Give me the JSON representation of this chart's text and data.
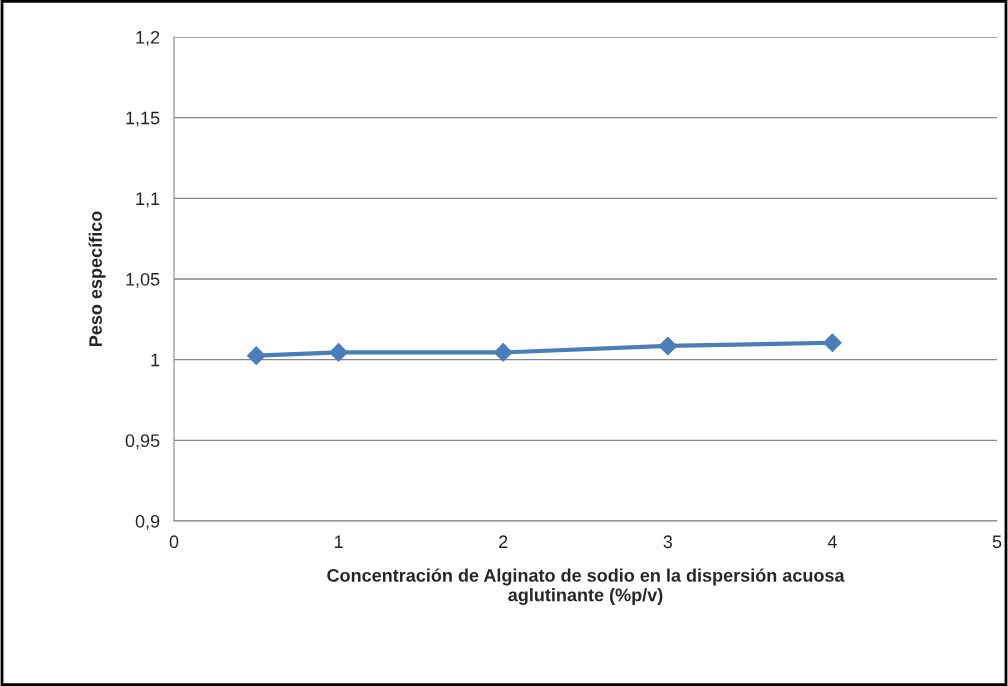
{
  "chart_data": {
    "type": "line",
    "xlabel": "Concentración de Alginato de sodio en la dispersión acuosa\naglutinante (%p/v)",
    "ylabel": "Peso específico",
    "x": [
      0.5,
      1,
      2,
      3,
      4
    ],
    "series": [
      {
        "color": "#4a7ebb",
        "values": [
          1.0025,
          1.0045,
          1.0045,
          1.0085,
          1.0105
        ]
      }
    ],
    "xlim": [
      0,
      5
    ],
    "xticks": [
      0,
      1,
      2,
      3,
      4,
      5
    ],
    "ylim": [
      0.9,
      1.2
    ],
    "yticks": [
      {
        "value": 0.9,
        "label": "0,9"
      },
      {
        "value": 0.95,
        "label": "0,95"
      },
      {
        "value": 1,
        "label": "1"
      },
      {
        "value": 1.05,
        "label": "1,05"
      },
      {
        "value": 1.1,
        "label": "1,1"
      },
      {
        "value": 1.15,
        "label": "1,15"
      },
      {
        "value": 1.2,
        "label": "1,2"
      }
    ],
    "grid": "y",
    "marker": "diamond",
    "line_style": "solid",
    "legend": false
  }
}
